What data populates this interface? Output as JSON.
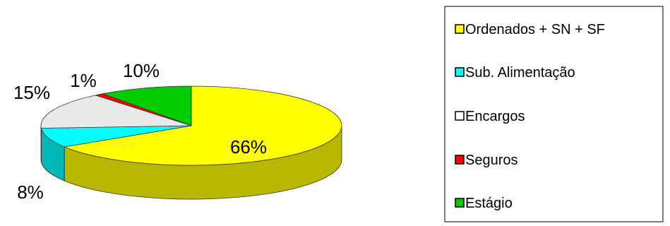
{
  "chart_data": {
    "type": "pie",
    "style": "3d-exploded-none",
    "categories": [
      "Ordenados + SN + SF",
      "Sub. Alimentação",
      "Encargos",
      "Seguros",
      "Estágio"
    ],
    "values": [
      66,
      8,
      15,
      1,
      10
    ],
    "data_labels": [
      "66%",
      "8%",
      "15%",
      "1%",
      "10%"
    ],
    "colors": [
      "#FFFF00",
      "#00FFFF",
      "#FFFFFF",
      "#FF0000",
      "#00CC00"
    ],
    "title": "",
    "legend": {
      "placement": "right",
      "entries": [
        "Ordenados + SN + SF",
        "Sub. Alimentação",
        "Encargos",
        "Seguros",
        "Estágio"
      ]
    }
  }
}
